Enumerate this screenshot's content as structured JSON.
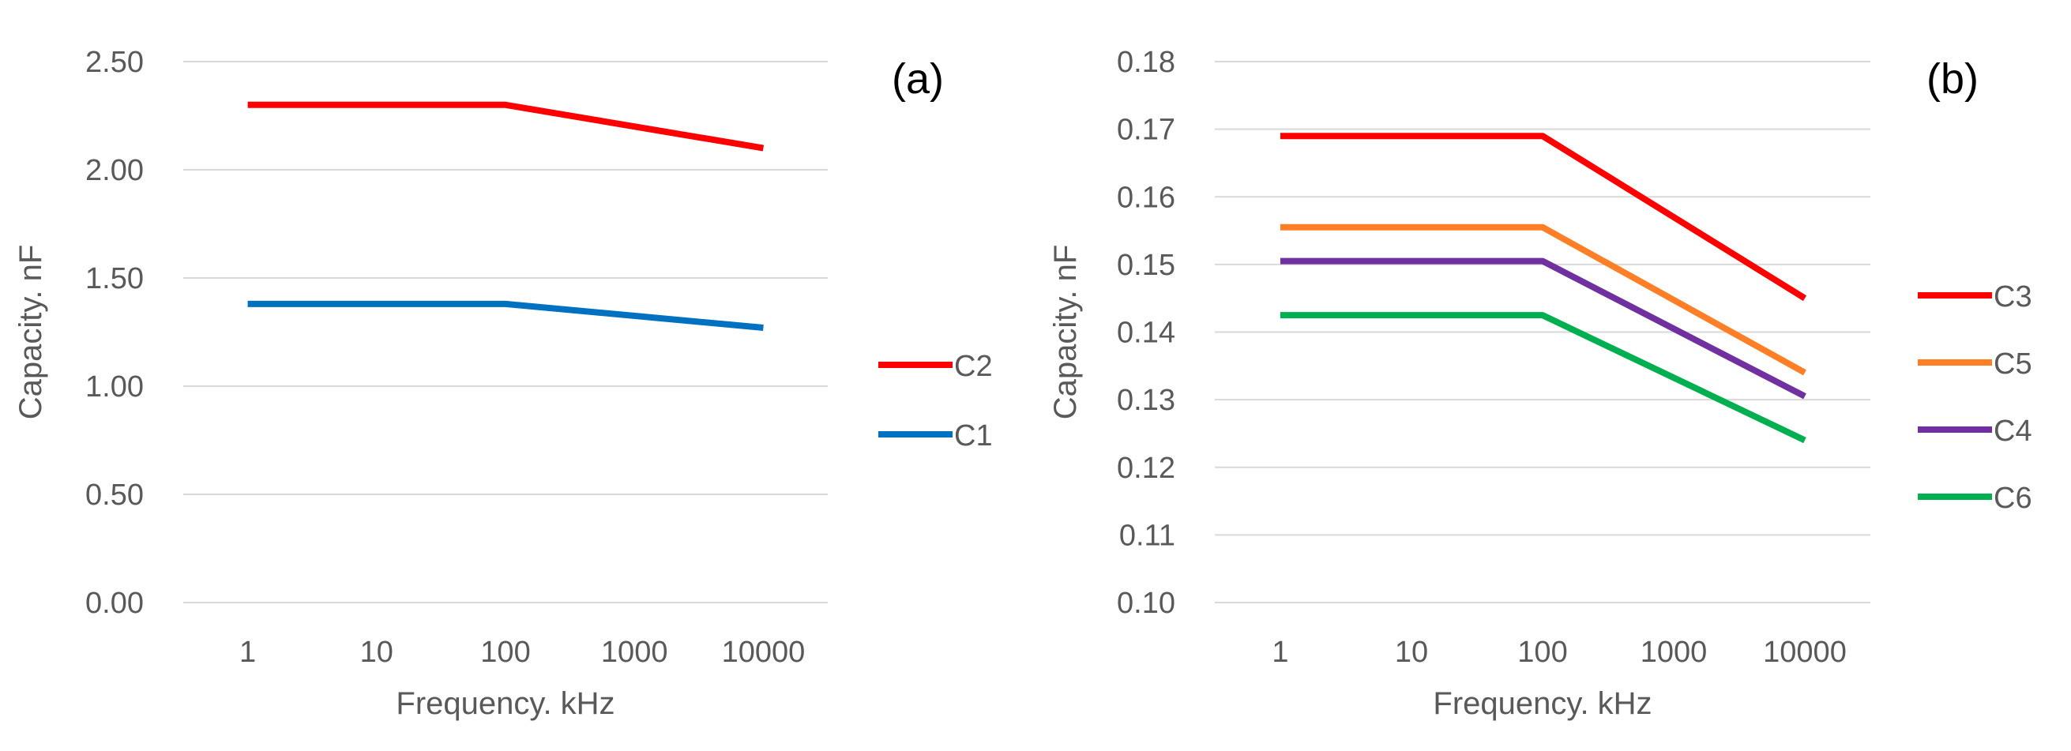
{
  "chart_data": [
    {
      "type": "line",
      "panel_label": "(a)",
      "title": "",
      "xlabel": "Frequency. kHz",
      "ylabel": "Capacity. nF",
      "categories": [
        "1",
        "10",
        "100",
        "1000",
        "10000"
      ],
      "yticks": [
        "0.00",
        "0.50",
        "1.00",
        "1.50",
        "2.00",
        "2.50"
      ],
      "ylim": [
        0,
        2.5
      ],
      "grid": true,
      "legend_position": "right",
      "series": [
        {
          "name": "C2",
          "color": "#ff0000",
          "points": [
            [
              "1",
              2.3
            ],
            [
              "100",
              2.3
            ],
            [
              "10000",
              2.1
            ]
          ]
        },
        {
          "name": "C1",
          "color": "#0070c0",
          "points": [
            [
              "1",
              1.38
            ],
            [
              "100",
              1.38
            ],
            [
              "10000",
              1.27
            ]
          ]
        }
      ]
    },
    {
      "type": "line",
      "panel_label": "(b)",
      "title": "",
      "xlabel": "Frequency. kHz",
      "ylabel": "Capacity. nF",
      "categories": [
        "1",
        "10",
        "100",
        "1000",
        "10000"
      ],
      "yticks": [
        "0.10",
        "0.11",
        "0.12",
        "0.13",
        "0.14",
        "0.15",
        "0.16",
        "0.17",
        "0.18"
      ],
      "ylim": [
        0.1,
        0.18
      ],
      "grid": true,
      "legend_position": "right",
      "series": [
        {
          "name": "C3",
          "color": "#ff0000",
          "points": [
            [
              "1",
              0.169
            ],
            [
              "100",
              0.169
            ],
            [
              "10000",
              0.145
            ]
          ]
        },
        {
          "name": "C5",
          "color": "#ff7f27",
          "points": [
            [
              "1",
              0.1555
            ],
            [
              "100",
              0.1555
            ],
            [
              "10000",
              0.134
            ]
          ]
        },
        {
          "name": "C4",
          "color": "#7030a0",
          "points": [
            [
              "1",
              0.1505
            ],
            [
              "100",
              0.1505
            ],
            [
              "10000",
              0.1305
            ]
          ]
        },
        {
          "name": "C6",
          "color": "#00b050",
          "points": [
            [
              "1",
              0.1425
            ],
            [
              "100",
              0.1425
            ],
            [
              "10000",
              0.124
            ]
          ]
        }
      ]
    }
  ]
}
